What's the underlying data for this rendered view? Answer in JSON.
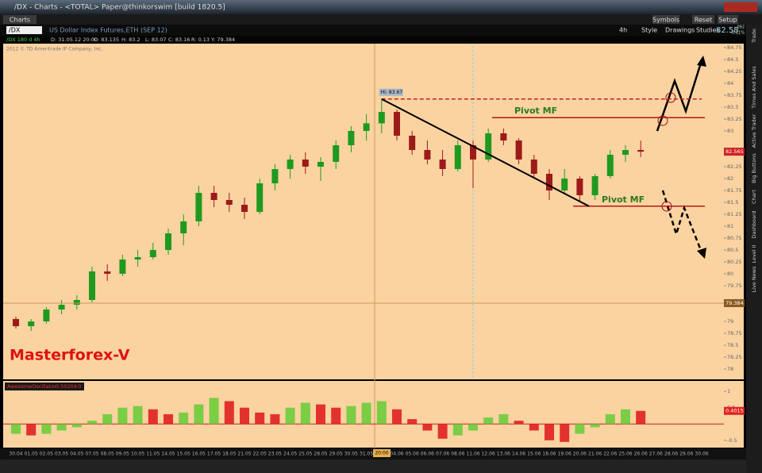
{
  "window": {
    "title": "/DX - Charts - <TOTAL> Paper@thinkorswim [build 1820.5]",
    "tab": "Charts",
    "buttons": [
      "Symbols",
      "Reset",
      "Setup"
    ]
  },
  "symbol_bar": {
    "symbol": "/DX",
    "description": "US Dollar Index Futures,ETH (SEP 12)",
    "aggregation": "4h",
    "tools": [
      "Style",
      "Drawings",
      "Studies"
    ],
    "last": "82.58",
    "change": "-.092",
    "change_pct": "-0.11%"
  },
  "info_bar": [
    "/DX 180 d 4h",
    "D: 31.05.12 20:00",
    "O: 83.135",
    "H: 83.2",
    "L: 83.07",
    "C: 83.16",
    "R: 0.13",
    "Y: 79.384"
  ],
  "copyright": "2012 © TD Ameritrade IP Company, Inc.",
  "side_tabs": [
    "Trade",
    "Times And Sales",
    "Active Trader",
    "Big Buttons",
    "Chart",
    "Dashboard",
    "Level II",
    "Live News"
  ],
  "watermark": "Masterforex-V",
  "chart_data": [
    {
      "type": "candlestick",
      "categories": [
        "30.04",
        "01.05",
        "02.05",
        "03.05",
        "04.05",
        "07.05",
        "08.05",
        "09.05",
        "10.05",
        "11.05",
        "14.05",
        "15.05",
        "16.05",
        "17.05",
        "18.05",
        "21.05",
        "22.05",
        "23.05",
        "24.05",
        "25.05",
        "28.05",
        "29.05",
        "30.05",
        "31.05",
        "01.06",
        "04.06",
        "05.06",
        "06.06",
        "07.06",
        "08.06",
        "11.06",
        "12.06",
        "13.06",
        "14.06",
        "15.06",
        "18.06",
        "19.06",
        "20.06",
        "21.06",
        "22.06",
        "25.06",
        "26.06",
        "27.06",
        "28.06",
        "29.06",
        "30.06"
      ],
      "open": [
        79.05,
        78.9,
        79.0,
        79.25,
        79.35,
        79.45,
        80.05,
        80.0,
        80.3,
        80.35,
        80.5,
        80.85,
        81.1,
        81.7,
        81.55,
        81.45,
        81.3,
        81.9,
        82.2,
        82.4,
        82.25,
        82.35,
        82.7,
        83.0,
        83.16,
        83.4,
        82.9,
        82.6,
        82.4,
        82.2,
        82.7,
        82.4,
        82.95,
        82.8,
        82.4,
        82.1,
        81.75,
        82.0,
        81.65,
        82.05,
        82.5,
        82.6,
        null,
        null,
        null,
        null
      ],
      "high": [
        79.1,
        79.05,
        79.3,
        79.45,
        79.55,
        80.15,
        80.2,
        80.4,
        80.5,
        80.65,
        80.95,
        81.25,
        81.85,
        81.85,
        81.7,
        81.6,
        82.0,
        82.3,
        82.5,
        82.55,
        82.45,
        82.8,
        83.1,
        83.35,
        83.67,
        83.45,
        83.0,
        82.8,
        82.6,
        82.8,
        82.8,
        83.05,
        83.05,
        82.85,
        82.5,
        82.2,
        82.2,
        82.05,
        82.1,
        82.6,
        82.7,
        82.8,
        null,
        null,
        null,
        null
      ],
      "low": [
        78.85,
        78.8,
        78.95,
        79.15,
        79.25,
        79.4,
        79.85,
        79.95,
        80.15,
        80.3,
        80.4,
        80.6,
        81.0,
        81.4,
        81.3,
        81.15,
        81.25,
        81.75,
        82.0,
        82.1,
        81.95,
        82.2,
        82.55,
        82.8,
        82.95,
        82.8,
        82.5,
        82.3,
        82.05,
        82.15,
        81.8,
        82.35,
        82.7,
        82.3,
        82.0,
        81.55,
        81.7,
        81.5,
        81.55,
        82.0,
        82.35,
        82.45,
        null,
        null,
        null,
        null
      ],
      "close": [
        78.9,
        79.0,
        79.25,
        79.35,
        79.45,
        80.05,
        80.0,
        80.3,
        80.35,
        80.5,
        80.85,
        81.1,
        81.7,
        81.55,
        81.45,
        81.3,
        81.9,
        82.2,
        82.4,
        82.25,
        82.35,
        82.7,
        83.0,
        83.16,
        83.4,
        82.9,
        82.6,
        82.4,
        82.2,
        82.7,
        82.4,
        82.95,
        82.8,
        82.4,
        82.1,
        81.75,
        82.0,
        81.65,
        82.05,
        82.5,
        82.6,
        82.565,
        null,
        null,
        null,
        null
      ],
      "up_color": "#1f9a1f",
      "down_color": "#9c1a1a",
      "ylim": [
        77.8,
        84.9
      ],
      "yticks": [
        84.75,
        84.5,
        84.25,
        84,
        83.75,
        83.5,
        83.25,
        83,
        82.25,
        82,
        81.75,
        81.5,
        81.25,
        81,
        80.75,
        80.5,
        80.25,
        80,
        79.75,
        79,
        78.75,
        78.5,
        78.25,
        78
      ],
      "last_price": 82.565,
      "crosshair": {
        "value": 79.384,
        "label": "20:00"
      },
      "annotations": [
        {
          "text": "Hi: 83.67",
          "value": 83.67
        },
        {
          "text": "Pivot MF",
          "value": 83.28
        },
        {
          "text": "Pivot MF",
          "value": 81.42
        }
      ]
    },
    {
      "type": "bar",
      "title": "AwesomeOscillator",
      "legend_values": [
        "0.50204",
        "0"
      ],
      "values": [
        -0.3,
        -0.35,
        -0.3,
        -0.2,
        -0.1,
        0.1,
        0.3,
        0.5,
        0.55,
        0.45,
        0.3,
        0.35,
        0.6,
        0.8,
        0.7,
        0.5,
        0.35,
        0.3,
        0.5,
        0.65,
        0.6,
        0.5,
        0.55,
        0.65,
        0.7,
        0.45,
        0.15,
        -0.2,
        -0.45,
        -0.35,
        -0.2,
        0.2,
        0.3,
        0.1,
        -0.2,
        -0.5,
        -0.55,
        -0.3,
        -0.1,
        0.3,
        0.45,
        0.4015,
        null,
        null,
        null,
        null
      ],
      "up_color": "#6ccc3a",
      "down_color": "#e02020",
      "ylim": [
        -0.675,
        1.125
      ],
      "yticks": [
        1,
        0.5,
        -0.5
      ]
    }
  ]
}
